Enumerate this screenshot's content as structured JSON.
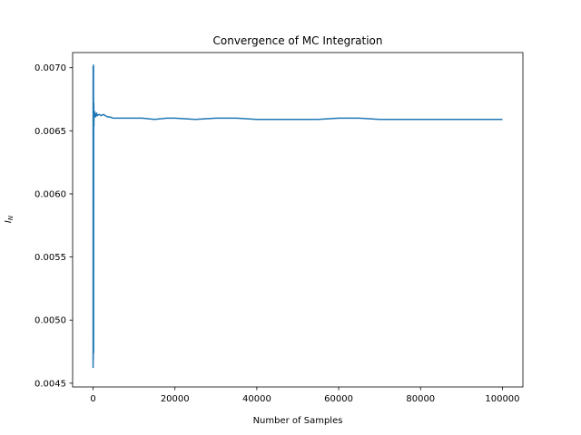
{
  "chart_data": {
    "type": "line",
    "title": "Convergence of MC Integration",
    "xlabel": "Number of Samples",
    "ylabel_main": "I",
    "ylabel_sub": "N",
    "xlim": [
      -5000,
      105000
    ],
    "ylim": [
      0.00447,
      0.00712
    ],
    "x_ticks": [
      0,
      20000,
      40000,
      60000,
      80000,
      100000
    ],
    "x_tick_labels": [
      "0",
      "20000",
      "40000",
      "60000",
      "80000",
      "100000"
    ],
    "y_ticks": [
      0.0045,
      0.005,
      0.0055,
      0.006,
      0.0065,
      0.007
    ],
    "y_tick_labels": [
      "0.0045",
      "0.0050",
      "0.0055",
      "0.0060",
      "0.0065",
      "0.0070"
    ],
    "grid": false,
    "line_color": "#1f77b4",
    "series": [
      {
        "x": [
          1,
          10,
          20,
          30,
          40,
          50,
          60,
          80,
          100,
          120,
          140,
          170,
          200,
          230,
          260,
          300,
          350,
          400,
          450,
          500,
          600,
          700,
          800,
          900,
          1000,
          1500,
          2000,
          2500,
          3000,
          3500,
          4000,
          5000,
          6000,
          8000,
          10000,
          12000,
          15000,
          18000,
          20000,
          25000,
          30000,
          35000,
          40000,
          45000,
          50000,
          55000,
          60000,
          65000,
          70000,
          75000,
          80000,
          85000,
          90000,
          95000,
          100000
        ],
        "y": [
          0.00462,
          0.00701,
          0.00508,
          0.00676,
          0.00468,
          0.00696,
          0.00478,
          0.00684,
          0.00702,
          0.00474,
          0.00662,
          0.00672,
          0.00654,
          0.00666,
          0.00661,
          0.00664,
          0.00662,
          0.00665,
          0.00662,
          0.00664,
          0.00661,
          0.00663,
          0.00662,
          0.00664,
          0.00662,
          0.00663,
          0.00662,
          0.00663,
          0.00662,
          0.00661,
          0.00661,
          0.0066,
          0.0066,
          0.0066,
          0.0066,
          0.0066,
          0.00659,
          0.0066,
          0.0066,
          0.00659,
          0.0066,
          0.0066,
          0.00659,
          0.00659,
          0.00659,
          0.00659,
          0.0066,
          0.0066,
          0.00659,
          0.00659,
          0.00659,
          0.00659,
          0.00659,
          0.00659,
          0.00659
        ]
      }
    ]
  }
}
